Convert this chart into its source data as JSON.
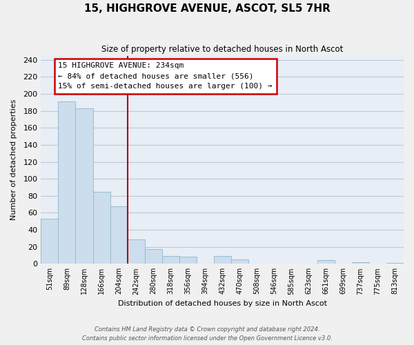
{
  "title": "15, HIGHGROVE AVENUE, ASCOT, SL5 7HR",
  "subtitle": "Size of property relative to detached houses in North Ascot",
  "xlabel": "Distribution of detached houses by size in North Ascot",
  "ylabel": "Number of detached properties",
  "bar_labels": [
    "51sqm",
    "89sqm",
    "128sqm",
    "166sqm",
    "204sqm",
    "242sqm",
    "280sqm",
    "318sqm",
    "356sqm",
    "394sqm",
    "432sqm",
    "470sqm",
    "508sqm",
    "546sqm",
    "585sqm",
    "623sqm",
    "661sqm",
    "699sqm",
    "737sqm",
    "775sqm",
    "813sqm"
  ],
  "bar_values": [
    53,
    191,
    183,
    85,
    68,
    29,
    17,
    9,
    8,
    0,
    9,
    5,
    0,
    0,
    0,
    0,
    4,
    0,
    2,
    0,
    1
  ],
  "bar_color": "#ccdded",
  "bar_edge_color": "#99bbcc",
  "property_line_idx": 5,
  "property_line_color": "#aa0000",
  "annotation_line1": "15 HIGHGROVE AVENUE: 234sqm",
  "annotation_line2": "← 84% of detached houses are smaller (556)",
  "annotation_line3": "15% of semi-detached houses are larger (100) →",
  "annotation_box_color": "#ffffff",
  "annotation_box_edge_color": "#cc0000",
  "ylim": [
    0,
    245
  ],
  "yticks": [
    0,
    20,
    40,
    60,
    80,
    100,
    120,
    140,
    160,
    180,
    200,
    220,
    240
  ],
  "footer_line1": "Contains HM Land Registry data © Crown copyright and database right 2024.",
  "footer_line2": "Contains public sector information licensed under the Open Government Licence v3.0.",
  "bg_color": "#f0f0f0",
  "plot_bg_color": "#e8eef5",
  "grid_color": "#c0c8d8"
}
